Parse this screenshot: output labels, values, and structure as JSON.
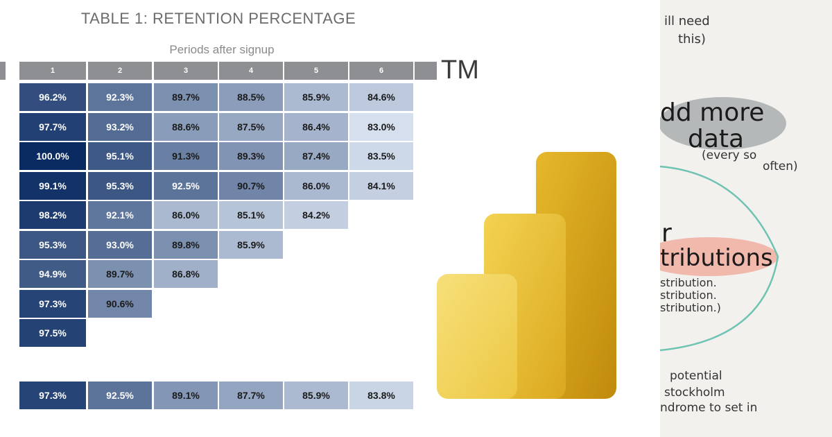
{
  "chart_data": {
    "type": "heatmap",
    "title": "TABLE 1: RETENTION PERCENTAGE",
    "xlabel": "Periods after signup",
    "columns": [
      "1",
      "2",
      "3",
      "4",
      "5",
      "6"
    ],
    "rows": [
      [
        96.2,
        92.3,
        89.7,
        88.5,
        85.9,
        84.6
      ],
      [
        97.7,
        93.2,
        88.6,
        87.5,
        86.4,
        83.0
      ],
      [
        100.0,
        95.1,
        91.3,
        89.3,
        87.4,
        83.5
      ],
      [
        99.1,
        95.3,
        92.5,
        90.7,
        86.0,
        84.1
      ],
      [
        98.2,
        92.1,
        86.0,
        85.1,
        84.2
      ],
      [
        95.3,
        93.0,
        89.8,
        85.9
      ],
      [
        94.9,
        89.7,
        86.8
      ],
      [
        97.3,
        90.6
      ],
      [
        97.5
      ]
    ],
    "summary_row": [
      97.3,
      92.5,
      89.1,
      87.7,
      85.9,
      83.8
    ],
    "value_suffix": "%"
  },
  "logo_text": "TM",
  "notes": {
    "line1": "ill need",
    "line2": "this)",
    "line3": "dd more",
    "line4": "data",
    "line5": "(every so",
    "line6": "often)",
    "line7": "r",
    "line8": "tributions",
    "line9": "stribution.",
    "line10": "stribution.",
    "line11": "stribution.)",
    "line12": "potential",
    "line13": "stockholm",
    "line14": "ndrome to set in"
  },
  "colors": {
    "header_gray": "#8d8f93",
    "scale_low": "#e8f0fa",
    "scale_high": "#0a2a62",
    "pbi_light": "#f2d45c",
    "pbi_mid": "#e8b928",
    "pbi_dark": "#c99410",
    "note_gray_highlight": "#9aa0a3",
    "note_red_highlight": "#f0a090",
    "circle_teal": "#6fc3b2"
  }
}
